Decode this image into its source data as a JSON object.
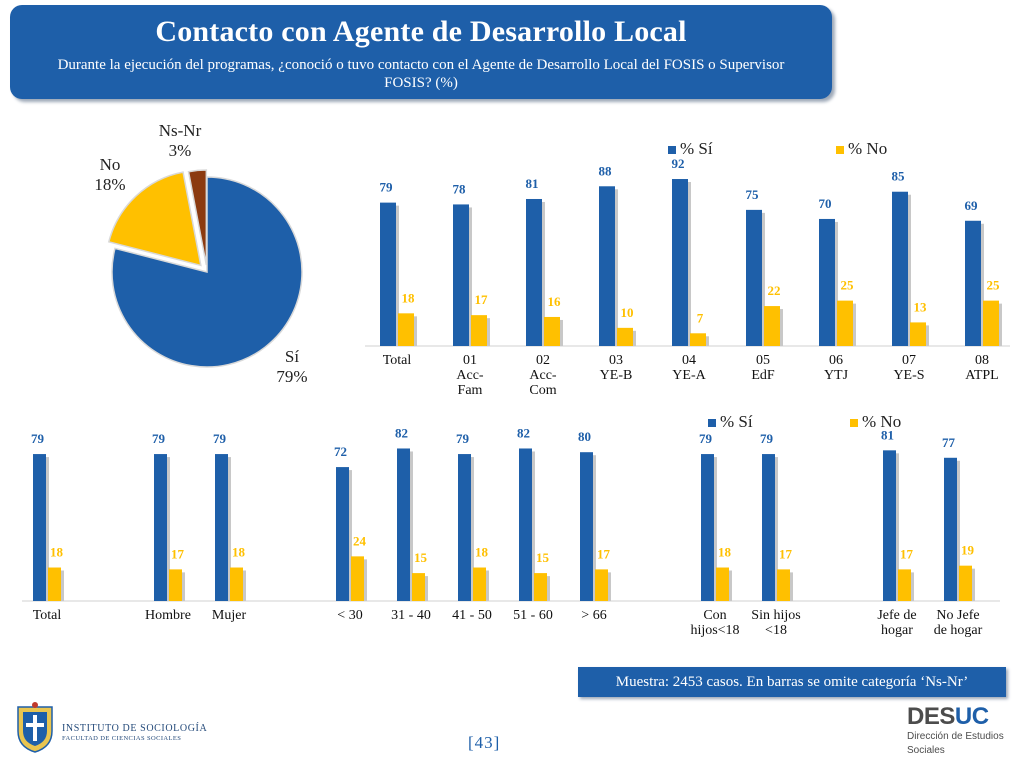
{
  "header": {
    "title": "Contacto con Agente de Desarrollo Local",
    "subtitle": "Durante la ejecución del programas, ¿conoció o tuvo contacto con el Agente de Desarrollo Local del FOSIS o Supervisor FOSIS? (%)"
  },
  "footer": {
    "sample_note": "Muestra: 2453 casos. En barras se omite categoría ‘Ns-Nr’",
    "page_number": "[43]",
    "institute_line1": "INSTITUTO DE SOCIOLOGÍA",
    "institute_line2": "FACULTAD DE CIENCIAS SOCIALES",
    "desuc_logo": "DES",
    "desuc_logo_accent": "UC",
    "desuc_line1": "Dirección de Estudios",
    "desuc_line2": "Sociales"
  },
  "colors": {
    "si": "#1e5fa9",
    "no": "#ffc000",
    "nsnr": "#8b3a10",
    "header_bg": "#1e5fa9"
  },
  "chart_data": [
    {
      "type": "pie",
      "slices": [
        {
          "label": "Sí",
          "value": 79,
          "display": "79%"
        },
        {
          "label": "No",
          "value": 18,
          "display": "18%"
        },
        {
          "label": "Ns-Nr",
          "value": 3,
          "display": "3%"
        }
      ]
    },
    {
      "type": "bar",
      "categories": [
        [
          "Total"
        ],
        [
          "01",
          "Acc-",
          "Fam"
        ],
        [
          "02",
          "Acc-",
          "Com"
        ],
        [
          "03",
          "YE-B"
        ],
        [
          "04",
          "YE-A"
        ],
        [
          "05",
          "EdF"
        ],
        [
          "06",
          "YTJ"
        ],
        [
          "07",
          "YE-S"
        ],
        [
          "08",
          "ATPL"
        ]
      ],
      "series": [
        {
          "name": "% Sí",
          "values": [
            79,
            78,
            81,
            88,
            92,
            75,
            70,
            85,
            69
          ]
        },
        {
          "name": "% No",
          "values": [
            18,
            17,
            16,
            10,
            7,
            22,
            25,
            13,
            25
          ]
        }
      ],
      "legend": "top"
    },
    {
      "type": "bar",
      "categories": [
        [
          "Total"
        ],
        [
          "Hombre"
        ],
        [
          "Mujer"
        ],
        [
          "< 30"
        ],
        [
          "31 - 40"
        ],
        [
          "41 - 50"
        ],
        [
          "51 - 60"
        ],
        [
          "> 66"
        ],
        [
          "Con",
          "hijos<18"
        ],
        [
          "Sin hijos",
          "<18"
        ],
        [
          "Jefe de",
          "hogar"
        ],
        [
          "No Jefe",
          "de hogar"
        ]
      ],
      "groups": [
        [
          0
        ],
        [
          1,
          2
        ],
        [
          3,
          4,
          5,
          6,
          7
        ],
        [
          8,
          9
        ],
        [
          10,
          11
        ]
      ],
      "series": [
        {
          "name": "% Sí",
          "values": [
            79,
            79,
            79,
            72,
            82,
            79,
            82,
            80,
            79,
            79,
            81,
            77
          ]
        },
        {
          "name": "% No",
          "values": [
            18,
            17,
            18,
            24,
            15,
            18,
            15,
            17,
            18,
            17,
            17,
            19
          ]
        }
      ],
      "legend": "top"
    }
  ]
}
